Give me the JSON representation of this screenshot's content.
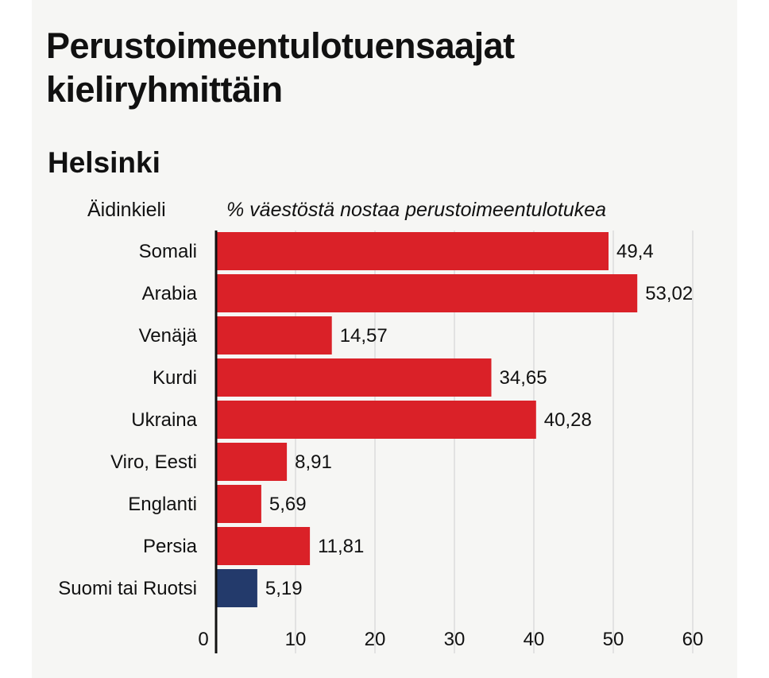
{
  "title": "Perustoimeentulotuensaajat kieliryhmittäin",
  "subtitle": "Helsinki",
  "colors": {
    "highlight": "#da2128",
    "reference": "#233a6b",
    "grid": "#dcdcdc",
    "axis": "#111111"
  },
  "chart_data": {
    "type": "bar",
    "orientation": "horizontal",
    "title": "Perustoimeentulotuensaajat kieliryhmittäin",
    "subtitle": "Helsinki",
    "ylabel": "Äidinkieli",
    "xlabel": "% väestöstä nostaa perustoimeentulotukea",
    "xlim": [
      0,
      60
    ],
    "xticks": [
      "0",
      "10",
      "20",
      "30",
      "40",
      "50",
      "60"
    ],
    "grid": true,
    "categories": [
      "Somali",
      "Arabia",
      "Venäjä",
      "Kurdi",
      "Ukraina",
      "Viro, Eesti",
      "Englanti",
      "Persia",
      "Suomi tai Ruotsi"
    ],
    "values": [
      49.4,
      53.02,
      14.57,
      34.65,
      40.28,
      8.91,
      5.69,
      11.81,
      5.19
    ],
    "value_labels": [
      "49,4",
      "53,02",
      "14,57",
      "34,65",
      "40,28",
      "8,91",
      "5,69",
      "11,81",
      "5,19"
    ],
    "bar_colors": [
      "#da2128",
      "#da2128",
      "#da2128",
      "#da2128",
      "#da2128",
      "#da2128",
      "#da2128",
      "#da2128",
      "#233a6b"
    ]
  }
}
